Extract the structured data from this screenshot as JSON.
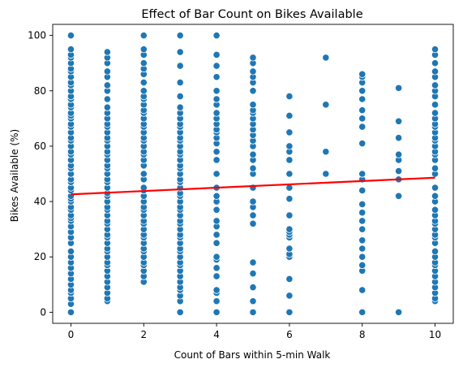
{
  "chart_data": {
    "type": "scatter",
    "title": "Effect of Bar Count on Bikes Available",
    "xlabel": "Count of Bars within 5-min Walk",
    "ylabel": "Bikes Available (%)",
    "xlim": [
      -0.5,
      10.5
    ],
    "ylim": [
      -4,
      104
    ],
    "xticks": [
      0,
      2,
      4,
      6,
      8,
      10
    ],
    "yticks": [
      0,
      20,
      40,
      60,
      80,
      100
    ],
    "grid": false,
    "legend": "none",
    "point_color": "#1f77b4",
    "point_edge_color": "#ffffff",
    "line_color": "#ff0000",
    "trend_line": {
      "x": [
        0,
        10
      ],
      "y": [
        42.6,
        48.6
      ]
    },
    "points_by_x": {
      "0": [
        0,
        3,
        5,
        7,
        8,
        10,
        12,
        14,
        16,
        18,
        20,
        22,
        25,
        27,
        29,
        31,
        33,
        34,
        35,
        37,
        38,
        40,
        41,
        42,
        44,
        45,
        47,
        48,
        50,
        52,
        53,
        55,
        57,
        58,
        60,
        62,
        63,
        65,
        67,
        68,
        70,
        71,
        72,
        74,
        75,
        77,
        78,
        80,
        82,
        83,
        85,
        87,
        88,
        90,
        92,
        93,
        95,
        100
      ],
      "1": [
        4,
        5,
        7,
        9,
        11,
        13,
        15,
        17,
        18,
        20,
        22,
        23,
        25,
        27,
        28,
        30,
        32,
        33,
        35,
        37,
        38,
        40,
        42,
        43,
        45,
        47,
        48,
        50,
        52,
        53,
        55,
        57,
        58,
        60,
        62,
        63,
        65,
        67,
        68,
        70,
        72,
        74,
        77,
        80,
        82,
        85,
        87,
        90,
        92,
        94
      ],
      "2": [
        11,
        13,
        15,
        17,
        18,
        20,
        22,
        23,
        25,
        27,
        28,
        30,
        32,
        33,
        35,
        37,
        38,
        40,
        42,
        44,
        45,
        48,
        50,
        53,
        55,
        57,
        58,
        60,
        62,
        63,
        65,
        67,
        68,
        70,
        72,
        73,
        75,
        77,
        78,
        80,
        83,
        86,
        88,
        90,
        93,
        95,
        100
      ],
      "3": [
        0,
        4,
        6,
        8,
        9,
        11,
        13,
        15,
        17,
        18,
        20,
        22,
        23,
        25,
        27,
        28,
        30,
        32,
        33,
        35,
        37,
        38,
        40,
        42,
        43,
        45,
        47,
        48,
        50,
        52,
        53,
        55,
        57,
        58,
        60,
        62,
        63,
        65,
        67,
        68,
        70,
        72,
        74,
        78,
        83,
        89,
        94,
        100
      ],
      "4": [
        0,
        4,
        7,
        8,
        13,
        16,
        19,
        20,
        25,
        28,
        31,
        33,
        37,
        40,
        42,
        45,
        50,
        55,
        58,
        61,
        63,
        65,
        66,
        68,
        70,
        72,
        75,
        77,
        80,
        85,
        89,
        93,
        100
      ],
      "5": [
        0,
        4,
        9,
        14,
        18,
        32,
        35,
        38,
        40,
        45,
        50,
        52,
        55,
        57,
        60,
        62,
        64,
        66,
        68,
        70,
        72,
        73,
        75,
        80,
        83,
        85,
        87,
        90,
        92
      ],
      "6": [
        0,
        6,
        12,
        20,
        21,
        23,
        27,
        28,
        29,
        30,
        35,
        41,
        45,
        50,
        55,
        58,
        60,
        65,
        71,
        78
      ],
      "7": [
        50,
        58,
        75,
        92
      ],
      "8": [
        0,
        8,
        15,
        17,
        20,
        23,
        26,
        30,
        33,
        36,
        39,
        44,
        48,
        50,
        61,
        67,
        70,
        73,
        77,
        80,
        83,
        85,
        86
      ],
      "9": [
        0,
        42,
        48,
        51,
        55,
        57,
        63,
        69,
        81
      ],
      "10": [
        4,
        5,
        7,
        9,
        11,
        13,
        15,
        17,
        18,
        20,
        22,
        25,
        27,
        28,
        30,
        32,
        33,
        35,
        37,
        40,
        42,
        45,
        50,
        52,
        55,
        57,
        58,
        60,
        62,
        63,
        65,
        67,
        68,
        70,
        72,
        75,
        78,
        80,
        82,
        85,
        87,
        90,
        93,
        95
      ]
    }
  }
}
